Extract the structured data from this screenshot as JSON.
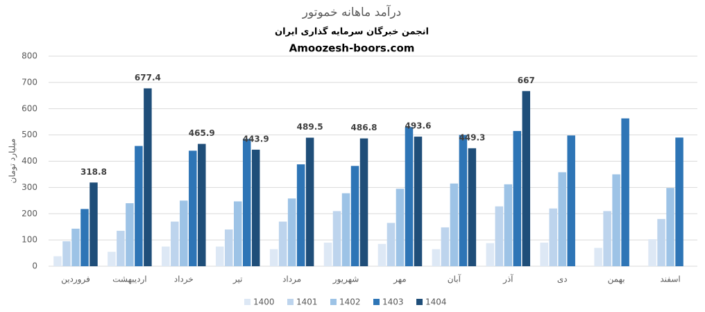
{
  "chart_data": {
    "type": "bar",
    "title": "درآمد ماهانه خموتور",
    "subtitle": "انجمن خبرگان سرمایه گذاری ایران",
    "caption": "Amoozesh-boors.com",
    "y_label": "میلیارد تومان",
    "categories": [
      "فروردین",
      "اردیبهشت",
      "خرداد",
      "تیر",
      "مرداد",
      "شهریور",
      "مهر",
      "آبان",
      "آذر",
      "دی",
      "بهمن",
      "اسفند"
    ],
    "series": [
      {
        "name": "1400",
        "color": "#dde8f5",
        "values": [
          38,
          55,
          75,
          75,
          65,
          90,
          85,
          65,
          88,
          90,
          70,
          103
        ]
      },
      {
        "name": "1401",
        "color": "#bdd4ed",
        "values": [
          95,
          135,
          170,
          140,
          170,
          210,
          165,
          148,
          228,
          220,
          210,
          180
        ]
      },
      {
        "name": "1402",
        "color": "#9dc3e6",
        "values": [
          143,
          240,
          250,
          247,
          258,
          278,
          295,
          315,
          312,
          358,
          350,
          298
        ]
      },
      {
        "name": "1403",
        "color": "#2e75b6",
        "values": [
          218,
          458,
          440,
          485,
          388,
          382,
          530,
          500,
          515,
          498,
          563,
          490
        ]
      },
      {
        "name": "1404",
        "color": "#1f4e79",
        "values": [
          318.8,
          677.4,
          465.9,
          443.9,
          489.5,
          486.8,
          493.6,
          449.3,
          667,
          null,
          null,
          null
        ],
        "show_labels": true
      }
    ],
    "ylim": [
      0,
      800
    ],
    "yticks": [
      0,
      100,
      200,
      300,
      400,
      500,
      600,
      700,
      800
    ],
    "grid": true,
    "legend": "bottom"
  }
}
